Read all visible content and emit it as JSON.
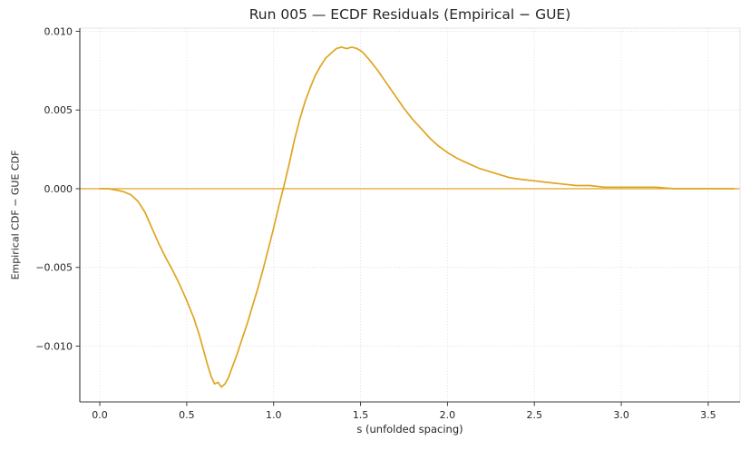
{
  "chart_data": {
    "type": "line",
    "title": "Run 005 — ECDF Residuals (Empirical − GUE)",
    "xlabel": "s (unfolded spacing)",
    "ylabel": "Empirical CDF − GUE CDF",
    "xlim": [
      -0.115,
      3.683
    ],
    "ylim": [
      -0.013545,
      0.010202
    ],
    "grid": true,
    "legend": false,
    "xticks": {
      "values": [
        0.0,
        0.5,
        1.0,
        1.5,
        2.0,
        2.5,
        3.0,
        3.5
      ],
      "labels": [
        "0.0",
        "0.5",
        "1.0",
        "1.5",
        "2.0",
        "2.5",
        "3.0",
        "3.5"
      ]
    },
    "yticks": {
      "values": [
        -0.01,
        -0.005,
        0.0,
        0.005,
        0.01
      ],
      "labels": [
        "−0.010",
        "−0.005",
        "0.000",
        "0.005",
        "0.010"
      ]
    },
    "series": [
      {
        "name": "zero-reference-line",
        "color": "#DFA520",
        "line_width": 1.2,
        "points": [
          [
            -0.115,
            0.0
          ],
          [
            3.683,
            0.0
          ]
        ]
      },
      {
        "name": "residual-curve",
        "color": "#DFA520",
        "line_width": 1.7,
        "points": [
          [
            0.0,
            0.0
          ],
          [
            0.05,
            0.0
          ],
          [
            0.1,
            -0.0001
          ],
          [
            0.14,
            -0.0002
          ],
          [
            0.18,
            -0.0004
          ],
          [
            0.22,
            -0.0008
          ],
          [
            0.26,
            -0.0015
          ],
          [
            0.3,
            -0.0025
          ],
          [
            0.34,
            -0.0035
          ],
          [
            0.38,
            -0.0044
          ],
          [
            0.42,
            -0.0052
          ],
          [
            0.46,
            -0.0061
          ],
          [
            0.5,
            -0.0071
          ],
          [
            0.54,
            -0.0082
          ],
          [
            0.57,
            -0.0092
          ],
          [
            0.6,
            -0.0104
          ],
          [
            0.62,
            -0.0112
          ],
          [
            0.64,
            -0.0119
          ],
          [
            0.66,
            -0.0124
          ],
          [
            0.68,
            -0.0123
          ],
          [
            0.7,
            -0.0126
          ],
          [
            0.72,
            -0.0124
          ],
          [
            0.74,
            -0.012
          ],
          [
            0.76,
            -0.0114
          ],
          [
            0.79,
            -0.0105
          ],
          [
            0.82,
            -0.0095
          ],
          [
            0.85,
            -0.0085
          ],
          [
            0.88,
            -0.0074
          ],
          [
            0.91,
            -0.0063
          ],
          [
            0.94,
            -0.0051
          ],
          [
            0.97,
            -0.0038
          ],
          [
            1.0,
            -0.0025
          ],
          [
            1.03,
            -0.0011
          ],
          [
            1.06,
            0.0002
          ],
          [
            1.09,
            0.0016
          ],
          [
            1.12,
            0.0031
          ],
          [
            1.15,
            0.0044
          ],
          [
            1.18,
            0.0055
          ],
          [
            1.21,
            0.0064
          ],
          [
            1.24,
            0.0072
          ],
          [
            1.27,
            0.0078
          ],
          [
            1.3,
            0.0083
          ],
          [
            1.33,
            0.0086
          ],
          [
            1.36,
            0.0089
          ],
          [
            1.39,
            0.009
          ],
          [
            1.42,
            0.0089
          ],
          [
            1.45,
            0.009
          ],
          [
            1.48,
            0.0089
          ],
          [
            1.51,
            0.0087
          ],
          [
            1.55,
            0.0082
          ],
          [
            1.6,
            0.0075
          ],
          [
            1.65,
            0.0067
          ],
          [
            1.7,
            0.0059
          ],
          [
            1.75,
            0.0051
          ],
          [
            1.8,
            0.0044
          ],
          [
            1.85,
            0.0038
          ],
          [
            1.9,
            0.0032
          ],
          [
            1.95,
            0.0027
          ],
          [
            2.0,
            0.0023
          ],
          [
            2.06,
            0.0019
          ],
          [
            2.12,
            0.0016
          ],
          [
            2.18,
            0.0013
          ],
          [
            2.24,
            0.0011
          ],
          [
            2.3,
            0.0009
          ],
          [
            2.36,
            0.0007
          ],
          [
            2.42,
            0.0006
          ],
          [
            2.5,
            0.0005
          ],
          [
            2.58,
            0.0004
          ],
          [
            2.66,
            0.0003
          ],
          [
            2.74,
            0.0002
          ],
          [
            2.82,
            0.0002
          ],
          [
            2.9,
            0.0001
          ],
          [
            3.0,
            0.0001
          ],
          [
            3.1,
            0.0001
          ],
          [
            3.2,
            0.0001
          ],
          [
            3.3,
            0.0
          ],
          [
            3.45,
            0.0
          ],
          [
            3.65,
            0.0
          ]
        ]
      }
    ],
    "colors": {
      "line": "#DFA520",
      "text": "#262626",
      "grid": "#dcdcdc",
      "spine": "#3b3b3b",
      "background": "#ffffff"
    }
  }
}
